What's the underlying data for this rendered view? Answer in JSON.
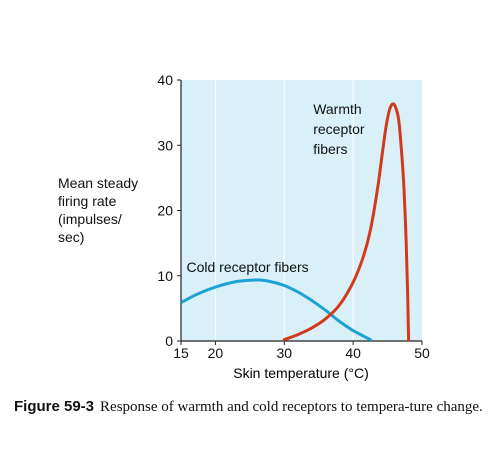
{
  "chart_data": {
    "type": "line",
    "xlabel": "Skin temperature (°C)",
    "ylabel_lines": [
      "Mean steady",
      "firing rate",
      "(impulses/",
      "sec)"
    ],
    "xlim": [
      15,
      50
    ],
    "ylim": [
      0,
      40
    ],
    "xticks": [
      15,
      20,
      30,
      40,
      50
    ],
    "yticks": [
      0,
      10,
      20,
      30,
      40
    ],
    "vertical_gridlines": [
      20,
      30,
      40
    ],
    "background_color": "#d9f0f9",
    "gridline_color": "#ffffff",
    "series": [
      {
        "name": "Cold receptor fibers",
        "color": "#1aa3d4",
        "x": [
          15.2,
          17,
          19,
          21,
          23,
          25,
          26.5,
          28,
          30,
          32,
          34,
          36,
          38,
          40,
          42.5
        ],
        "y": [
          6.0,
          7.0,
          7.9,
          8.6,
          9.1,
          9.3,
          9.35,
          9.1,
          8.5,
          7.5,
          6.2,
          4.7,
          3.0,
          1.6,
          0.2
        ],
        "label_x": 15.8,
        "label_y": 10.6
      },
      {
        "name": "Warmth receptor fibers",
        "label_lines": [
          "Warmth",
          "receptor",
          "fibers"
        ],
        "color": "#d23a1e",
        "x": [
          30,
          32,
          34,
          36,
          38,
          40,
          41.5,
          42.5,
          43.5,
          44.2,
          44.8,
          45.3,
          45.7,
          46.1,
          46.6,
          47.0,
          47.4,
          47.7,
          47.9,
          48.0,
          48.05
        ],
        "y": [
          0.2,
          1.0,
          2.0,
          3.4,
          5.5,
          9.0,
          13.0,
          17.0,
          23.0,
          28.5,
          33.0,
          35.5,
          36.3,
          36.0,
          34.0,
          29.5,
          23.0,
          15.0,
          8.0,
          3.0,
          0.2
        ],
        "label_x": 34.2,
        "label_y": 34.8
      }
    ]
  },
  "caption": {
    "figure_number": "Figure 59-3",
    "text": "Response of warmth and cold receptors to tempera-ture change."
  }
}
